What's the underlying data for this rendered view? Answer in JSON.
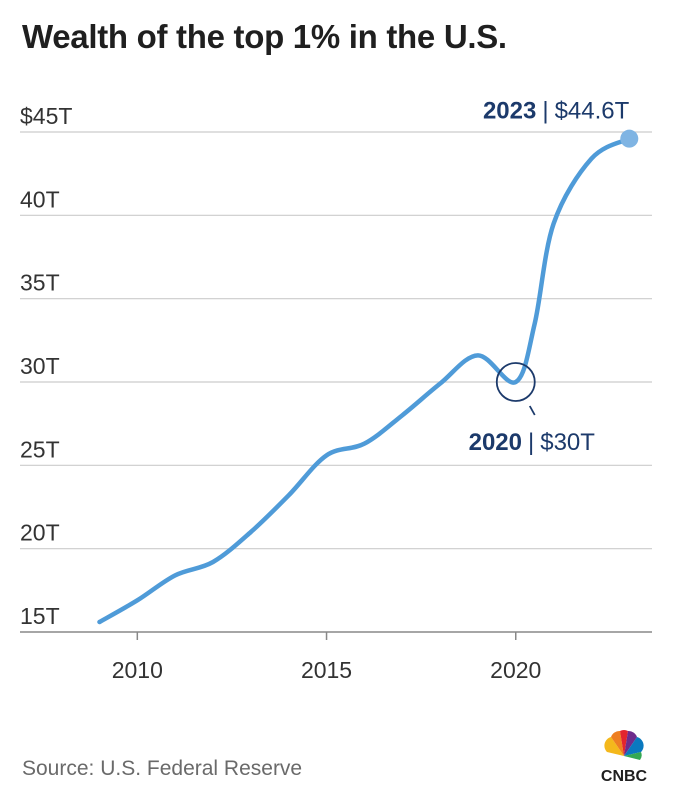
{
  "title": "Wealth of the top 1% in the U.S.",
  "source": "Source: U.S. Federal Reserve",
  "logo_text": "CNBC",
  "colors": {
    "line": "#4f9bd8",
    "annotation": "#1c3a6b",
    "grid": "#cccccc",
    "axis": "#888888",
    "endpoint": "#7fb4e3"
  },
  "chart_data": {
    "type": "line",
    "title": "Wealth of the top 1% in the U.S.",
    "xlabel": "",
    "ylabel": "",
    "xlim": [
      2006.9,
      2023.6
    ],
    "ylim": [
      15,
      45
    ],
    "x_ticks": [
      2010,
      2015,
      2020
    ],
    "x_tick_labels": [
      "2010",
      "2015",
      "2020"
    ],
    "y_ticks": [
      15,
      20,
      25,
      30,
      35,
      40,
      45
    ],
    "y_tick_labels": [
      "15T",
      "20T",
      "25T",
      "30T",
      "35T",
      "40T",
      "$45T"
    ],
    "series": [
      {
        "name": "Wealth of the top 1%",
        "x": [
          2009,
          2010,
          2011,
          2012,
          2013,
          2014,
          2015,
          2016,
          2017,
          2018,
          2019,
          2020,
          2020.5,
          2021,
          2022,
          2023
        ],
        "y": [
          15.6,
          16.9,
          18.4,
          19.2,
          21.0,
          23.2,
          25.6,
          26.3,
          28.0,
          29.9,
          31.6,
          30.0,
          33.5,
          39.5,
          43.4,
          44.6
        ]
      }
    ],
    "annotations": [
      {
        "year": "2023",
        "separator": "|",
        "value": "$44.6T",
        "x": 2023,
        "y": 44.6
      },
      {
        "year": "2020",
        "separator": "|",
        "value": "$30T",
        "x": 2020,
        "y": 30.0
      }
    ]
  }
}
